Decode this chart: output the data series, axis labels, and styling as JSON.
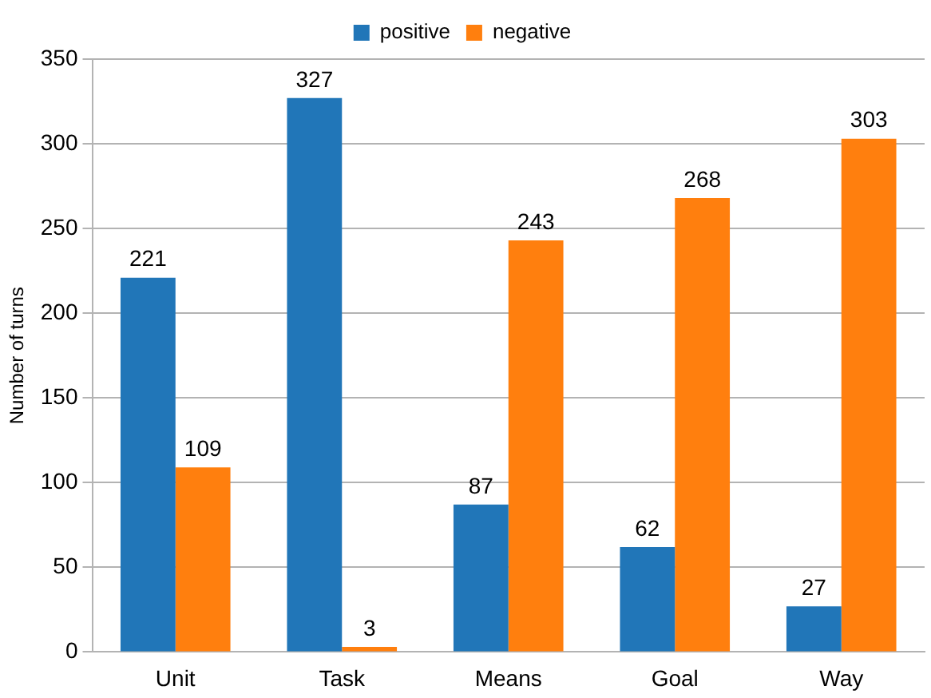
{
  "chart_data": {
    "type": "bar",
    "ylabel": "Number of turns",
    "categories": [
      "Unit",
      "Task",
      "Means",
      "Goal",
      "Way"
    ],
    "series": [
      {
        "name": "positive",
        "color": "#2176b8",
        "values": [
          221,
          327,
          87,
          62,
          27
        ]
      },
      {
        "name": "negative",
        "color": "#ff7f0e",
        "values": [
          109,
          3,
          243,
          268,
          303
        ]
      }
    ],
    "ylim": [
      0,
      350
    ],
    "yticks": [
      0,
      50,
      100,
      150,
      200,
      250,
      300,
      350
    ],
    "grid": "y",
    "legend": "top",
    "data_labels": true
  }
}
